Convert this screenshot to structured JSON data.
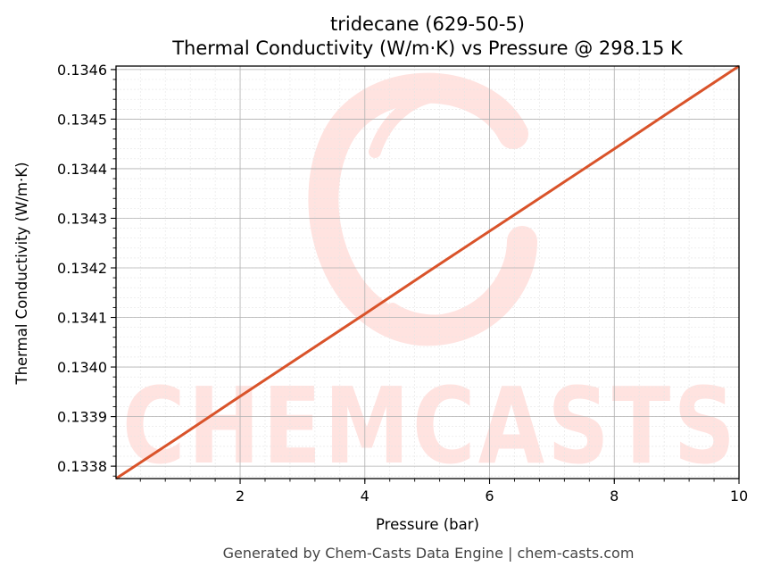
{
  "colors": {
    "line": "#d9532a",
    "grid_major": "#b0b0b0",
    "grid_minor": "#e4e4e4",
    "watermark": "#ffe3e0",
    "footer": "#444444"
  },
  "watermark": {
    "text": "CHEMCASTS",
    "logo": "chem-casts-swirl-logo"
  },
  "footer": "Generated by Chem-Casts Data Engine | chem-casts.com",
  "chart_data": {
    "type": "line",
    "title": "tridecane (629-50-5)",
    "subtitle": "Thermal Conductivity (W/m·K) vs Pressure @ 298.15 K",
    "xlabel": "Pressure (bar)",
    "ylabel": "Thermal Conductivity (W/m·K)",
    "xlim": [
      0.01,
      10
    ],
    "ylim": [
      0.133775,
      0.134607
    ],
    "xticks": [
      2,
      4,
      6,
      8,
      10
    ],
    "xtick_labels": [
      "2",
      "4",
      "6",
      "8",
      "10"
    ],
    "yticks": [
      0.1338,
      0.1339,
      0.134,
      0.1341,
      0.1342,
      0.1343,
      0.1344,
      0.1345,
      0.1346
    ],
    "ytick_labels": [
      "0.1338",
      "0.1339",
      "0.1340",
      "0.1341",
      "0.1342",
      "0.1343",
      "0.1344",
      "0.1345",
      "0.1346"
    ],
    "grid": true,
    "legend": "none",
    "series": [
      {
        "x": [
          0.01,
          1,
          2,
          3,
          4,
          5,
          6,
          7,
          8,
          9,
          10
        ],
        "values": [
          0.133775,
          0.133857,
          0.133941,
          0.134024,
          0.134107,
          0.134191,
          0.134274,
          0.134357,
          0.13444,
          0.134524,
          0.134607
        ]
      }
    ]
  }
}
